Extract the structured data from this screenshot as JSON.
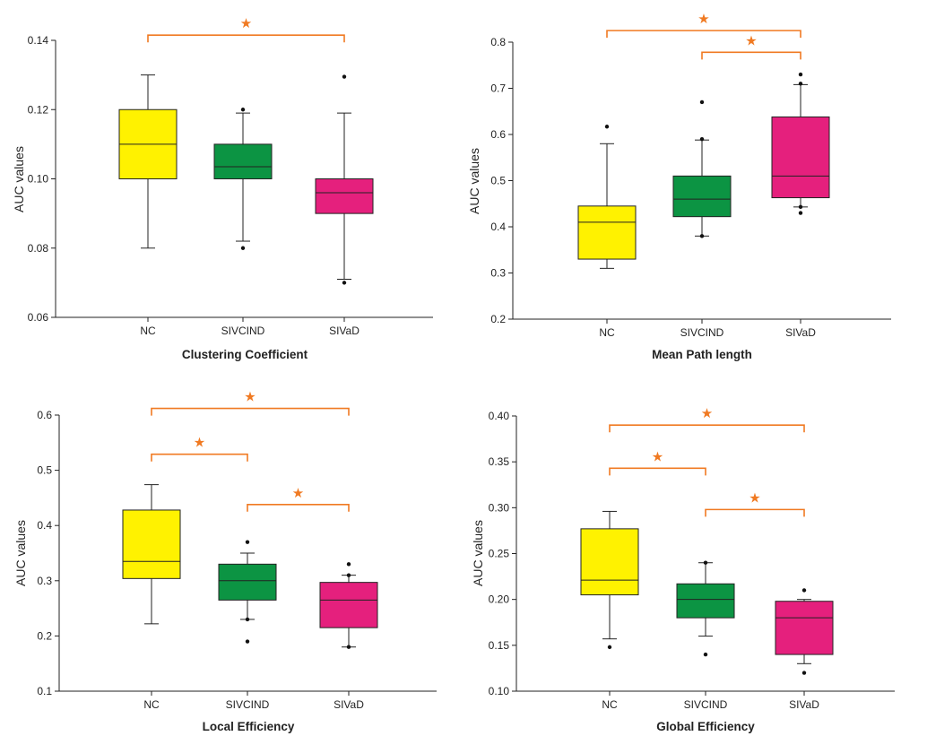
{
  "colors": {
    "group_fills": [
      "#fff200",
      "#0c9443",
      "#e5207d"
    ],
    "significance": "#f07a22",
    "axis": "#222222"
  },
  "significance_symbol": "★",
  "chart_data": [
    {
      "type": "box",
      "title": "Clustering Coefficient",
      "xlabel": "Clustering Coefficient",
      "ylabel": "AUC values",
      "categories": [
        "NC",
        "SIVCIND",
        "SIVaD"
      ],
      "ylim": [
        0.06,
        0.14
      ],
      "yticks": [
        0.06,
        0.08,
        0.1,
        0.12,
        0.14
      ],
      "tick_decimals": 2,
      "boxes": [
        {
          "q1": 0.1,
          "median": 0.11,
          "q3": 0.12,
          "whisker_low": 0.08,
          "whisker_high": 0.13,
          "outliers": []
        },
        {
          "q1": 0.1,
          "median": 0.1035,
          "q3": 0.11,
          "whisker_low": 0.082,
          "whisker_high": 0.119,
          "outliers": [
            0.08,
            0.12
          ]
        },
        {
          "q1": 0.09,
          "median": 0.096,
          "q3": 0.1,
          "whisker_low": 0.071,
          "whisker_high": 0.119,
          "outliers": [
            0.07,
            0.1295
          ]
        }
      ],
      "significance": [
        {
          "from": 0,
          "to": 2,
          "y": 0.1415
        }
      ]
    },
    {
      "type": "box",
      "title": "Mean Path length",
      "xlabel": "Mean Path length",
      "ylabel": "AUC values",
      "categories": [
        "NC",
        "SIVCIND",
        "SIVaD"
      ],
      "ylim": [
        0.2,
        0.8
      ],
      "yticks": [
        0.2,
        0.3,
        0.4,
        0.5,
        0.6,
        0.7,
        0.8
      ],
      "tick_decimals": 1,
      "boxes": [
        {
          "q1": 0.33,
          "median": 0.41,
          "q3": 0.445,
          "whisker_low": 0.31,
          "whisker_high": 0.58,
          "outliers": [
            0.617
          ]
        },
        {
          "q1": 0.422,
          "median": 0.46,
          "q3": 0.51,
          "whisker_low": 0.38,
          "whisker_high": 0.588,
          "outliers": [
            0.38,
            0.59,
            0.67
          ]
        },
        {
          "q1": 0.463,
          "median": 0.51,
          "q3": 0.638,
          "whisker_low": 0.443,
          "whisker_high": 0.708,
          "outliers": [
            0.43,
            0.443,
            0.71,
            0.73
          ]
        }
      ],
      "significance": [
        {
          "from": 0,
          "to": 2,
          "y": 0.825
        },
        {
          "from": 1,
          "to": 2,
          "y": 0.778
        }
      ]
    },
    {
      "type": "box",
      "title": "Local Efficiency",
      "xlabel": "Local Efficiency",
      "ylabel": "AUC values",
      "categories": [
        "NC",
        "SIVCIND",
        "SIVaD"
      ],
      "ylim": [
        0.1,
        0.6
      ],
      "yticks": [
        0.1,
        0.2,
        0.3,
        0.4,
        0.5,
        0.6
      ],
      "tick_decimals": 1,
      "boxes": [
        {
          "q1": 0.304,
          "median": 0.335,
          "q3": 0.428,
          "whisker_low": 0.222,
          "whisker_high": 0.474,
          "outliers": []
        },
        {
          "q1": 0.265,
          "median": 0.3,
          "q3": 0.33,
          "whisker_low": 0.23,
          "whisker_high": 0.35,
          "outliers": [
            0.19,
            0.23,
            0.37
          ]
        },
        {
          "q1": 0.215,
          "median": 0.265,
          "q3": 0.297,
          "whisker_low": 0.18,
          "whisker_high": 0.31,
          "outliers": [
            0.18,
            0.31,
            0.33
          ]
        }
      ],
      "significance": [
        {
          "from": 0,
          "to": 2,
          "y": 0.612
        },
        {
          "from": 0,
          "to": 1,
          "y": 0.529
        },
        {
          "from": 1,
          "to": 2,
          "y": 0.438
        }
      ]
    },
    {
      "type": "box",
      "title": "Global Efficiency",
      "xlabel": "Global Efficiency",
      "ylabel": "AUC values",
      "categories": [
        "NC",
        "SIVCIND",
        "SIVaD"
      ],
      "ylim": [
        0.1,
        0.4
      ],
      "yticks": [
        0.1,
        0.15,
        0.2,
        0.25,
        0.3,
        0.35,
        0.4
      ],
      "tick_decimals": 2,
      "boxes": [
        {
          "q1": 0.205,
          "median": 0.221,
          "q3": 0.277,
          "whisker_low": 0.157,
          "whisker_high": 0.296,
          "outliers": [
            0.148
          ]
        },
        {
          "q1": 0.18,
          "median": 0.2,
          "q3": 0.217,
          "whisker_low": 0.16,
          "whisker_high": 0.24,
          "outliers": [
            0.14,
            0.24
          ]
        },
        {
          "q1": 0.14,
          "median": 0.18,
          "q3": 0.198,
          "whisker_low": 0.13,
          "whisker_high": 0.2,
          "outliers": [
            0.12,
            0.21
          ]
        }
      ],
      "significance": [
        {
          "from": 0,
          "to": 2,
          "y": 0.39
        },
        {
          "from": 0,
          "to": 1,
          "y": 0.343
        },
        {
          "from": 1,
          "to": 2,
          "y": 0.298
        }
      ]
    }
  ]
}
